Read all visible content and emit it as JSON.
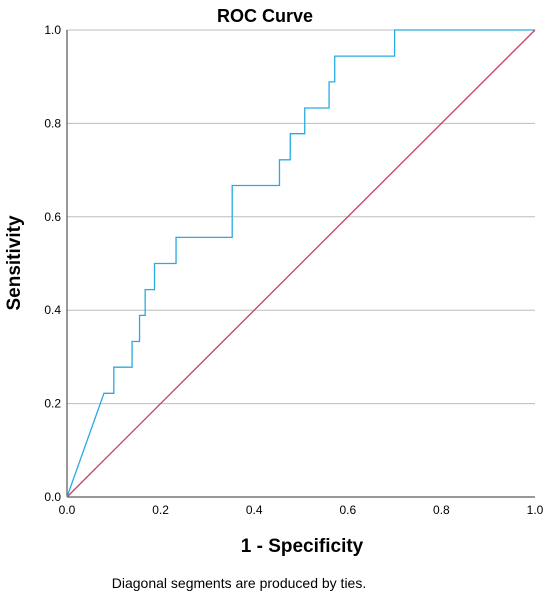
{
  "chart_data": {
    "type": "line",
    "title": "ROC Curve",
    "xlabel": "1 - Specificity",
    "ylabel": "Sensitivity",
    "footnote": "Diagonal segments are produced by ties.",
    "xlim": [
      0.0,
      1.0
    ],
    "ylim": [
      0.0,
      1.0
    ],
    "xticks": [
      "0.0",
      "0.2",
      "0.4",
      "0.6",
      "0.8",
      "1.0"
    ],
    "yticks": [
      "0.0",
      "0.2",
      "0.4",
      "0.6",
      "0.8",
      "1.0"
    ],
    "grid": "horizontal",
    "series": [
      {
        "color": "#29abe2",
        "x": [
          0.0,
          0.079,
          0.1,
          0.1,
          0.139,
          0.139,
          0.155,
          0.155,
          0.167,
          0.167,
          0.187,
          0.187,
          0.233,
          0.233,
          0.353,
          0.353,
          0.454,
          0.454,
          0.477,
          0.477,
          0.508,
          0.508,
          0.56,
          0.56,
          0.572,
          0.572,
          0.7,
          0.7,
          1.0
        ],
        "y": [
          0.0,
          0.222,
          0.222,
          0.278,
          0.278,
          0.333,
          0.333,
          0.389,
          0.389,
          0.444,
          0.444,
          0.5,
          0.5,
          0.556,
          0.556,
          0.667,
          0.667,
          0.722,
          0.722,
          0.778,
          0.778,
          0.833,
          0.833,
          0.889,
          0.889,
          0.944,
          0.944,
          1.0,
          1.0
        ]
      },
      {
        "color": "#c8415f",
        "x": [
          0.0,
          1.0
        ],
        "y": [
          0.0,
          1.0
        ]
      }
    ]
  }
}
